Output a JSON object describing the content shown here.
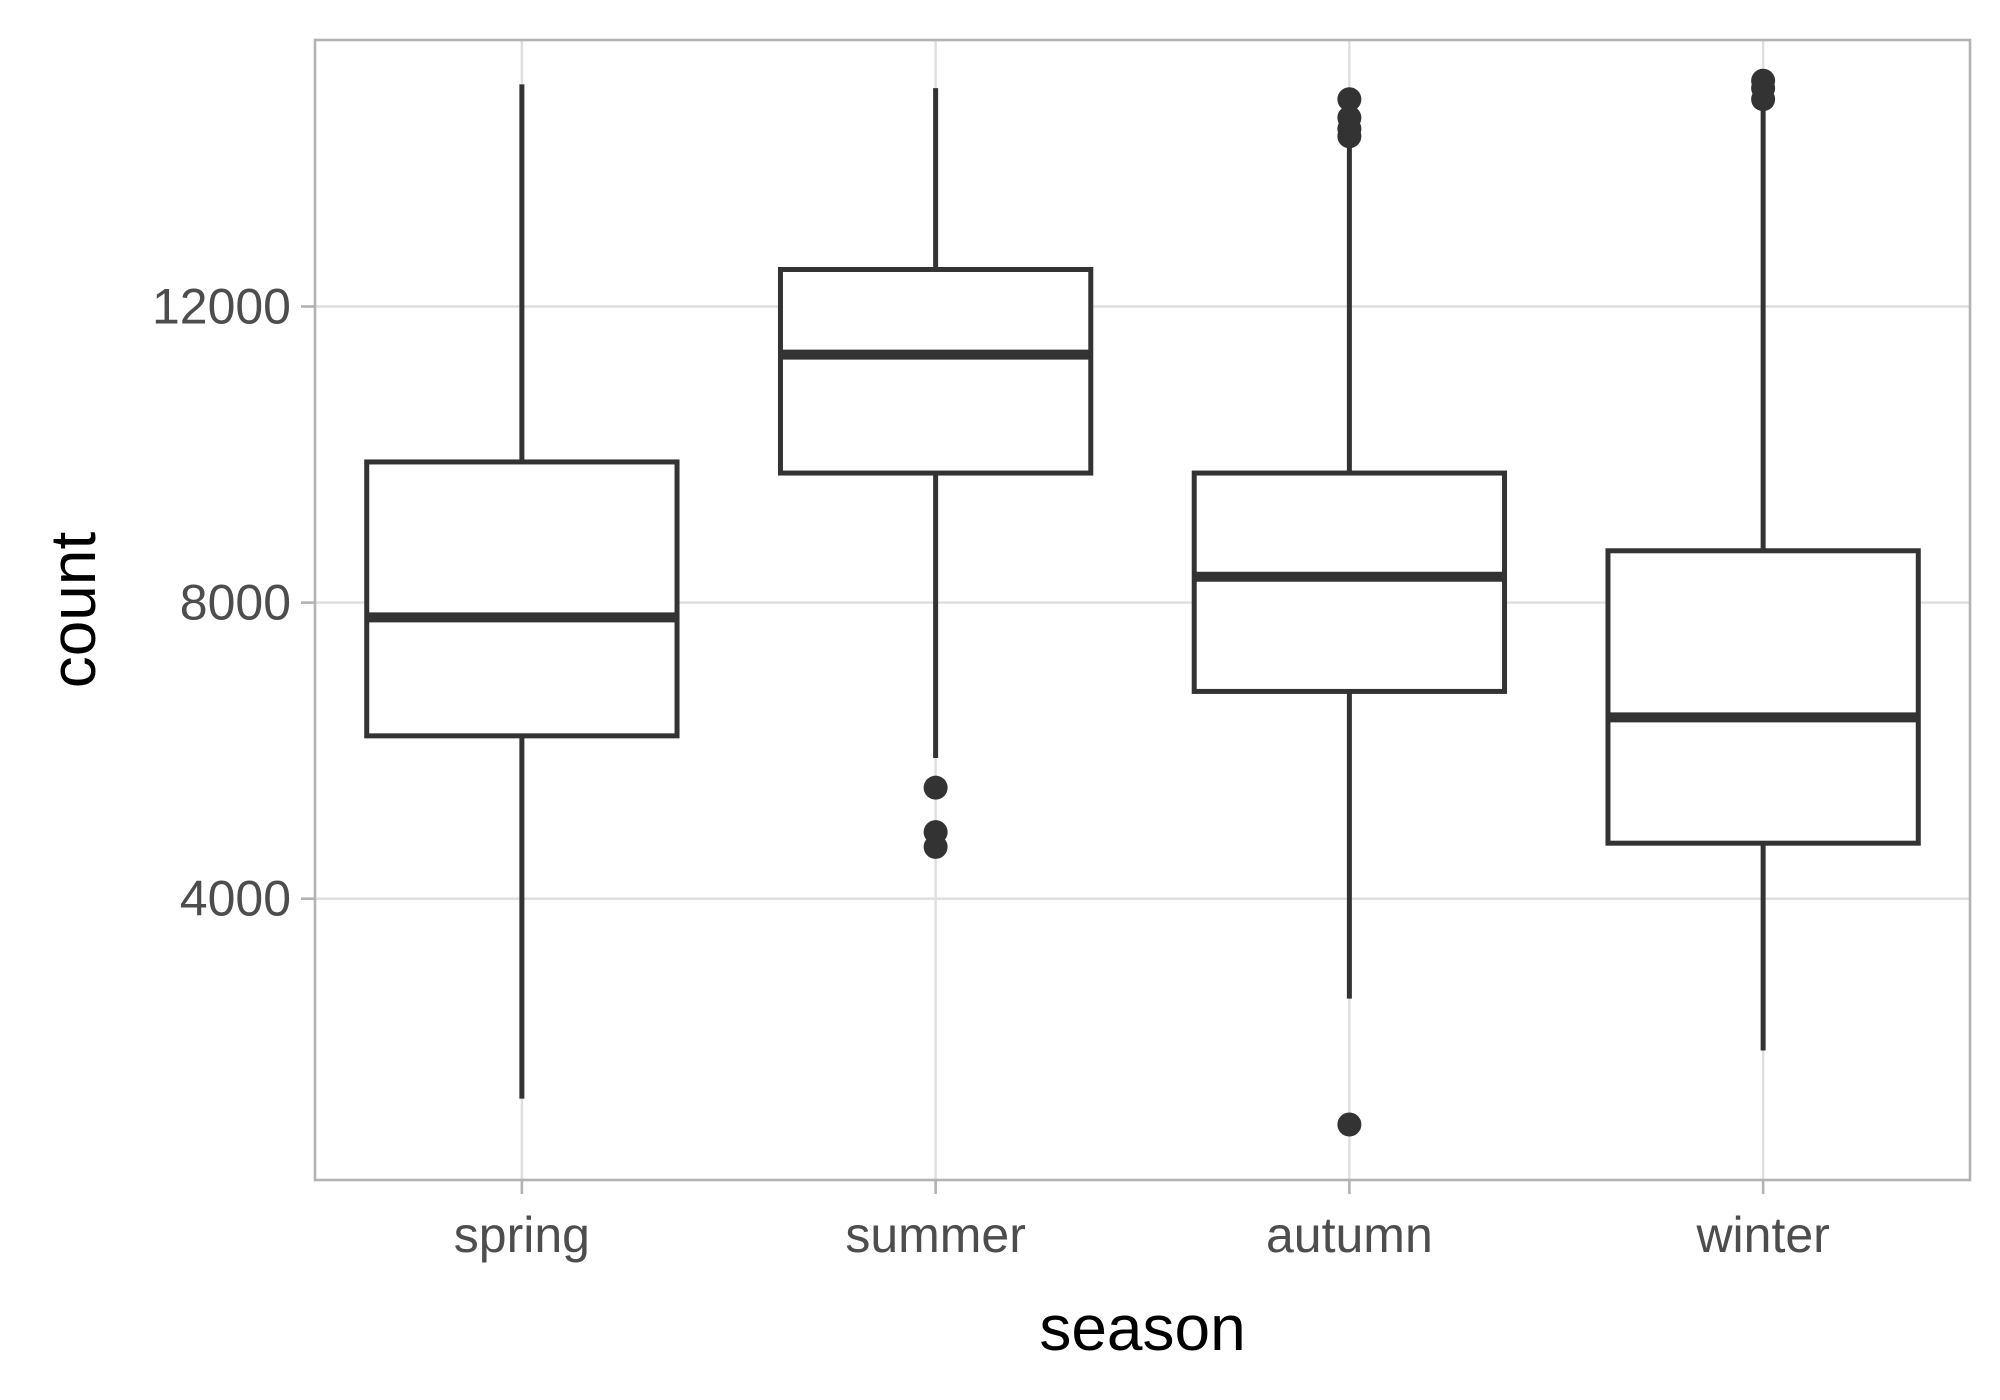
{
  "chart_data": {
    "type": "boxplot",
    "title": "",
    "xlabel": "season",
    "ylabel": "count",
    "categories": [
      "spring",
      "summer",
      "autumn",
      "winter"
    ],
    "ylim": [
      200,
      15600
    ],
    "y_ticks": [
      4000,
      8000,
      12000
    ],
    "y_tick_labels": [
      "4000",
      "8000",
      "12000"
    ],
    "grid": true,
    "boxes": [
      {
        "category": "spring",
        "whisker_low": 1300,
        "q1": 6200,
        "median": 7800,
        "q3": 9900,
        "whisker_high": 15000,
        "outliers": []
      },
      {
        "category": "summer",
        "whisker_low": 5900,
        "q1": 9750,
        "median": 11350,
        "q3": 12500,
        "whisker_high": 14950,
        "outliers": [
          5500,
          4900,
          4700
        ]
      },
      {
        "category": "autumn",
        "whisker_low": 2650,
        "q1": 6800,
        "median": 8350,
        "q3": 9750,
        "whisker_high": 14300,
        "outliers": [
          14800,
          14550,
          14400,
          14300,
          950
        ]
      },
      {
        "category": "winter",
        "whisker_low": 1950,
        "q1": 4750,
        "median": 6450,
        "q3": 8700,
        "whisker_high": 14800,
        "outliers": [
          15050,
          14950,
          14800
        ]
      }
    ]
  }
}
